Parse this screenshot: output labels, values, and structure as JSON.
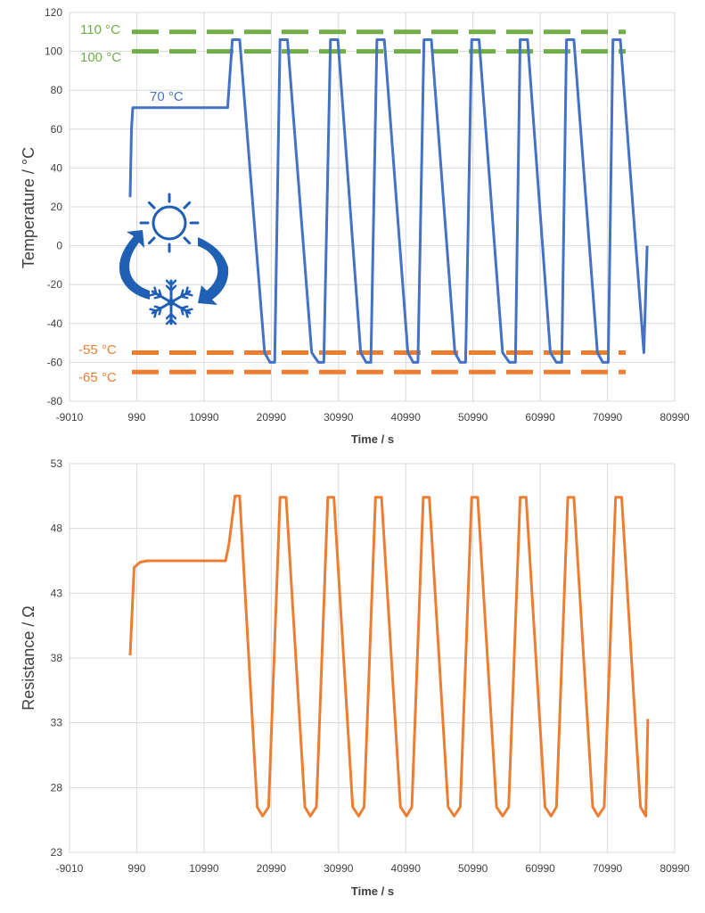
{
  "colors": {
    "temperature": "#4472c4",
    "resistance": "#ed7d31",
    "upper_limit": "#70ad47",
    "lower_limit": "#ed7d31",
    "icon": "#1f5fb4"
  },
  "icons": [
    "sun-icon",
    "snowflake-icon",
    "cycle-arrows-icon"
  ],
  "chart_data": [
    {
      "type": "line",
      "title": "",
      "xlabel": "Time / s",
      "ylabel": "Temperature / °C",
      "xlim": [
        -9010,
        80990
      ],
      "ylim": [
        -80,
        120
      ],
      "x_ticks": [
        "-9010",
        "990",
        "10990",
        "20990",
        "30990",
        "40990",
        "50990",
        "60990",
        "70990",
        "80990"
      ],
      "y_ticks": [
        "-80",
        "-60",
        "-40",
        "-20",
        "0",
        "20",
        "40",
        "60",
        "80",
        "100",
        "120"
      ],
      "grid": true,
      "series": [
        {
          "x": [
            0,
            200,
            400,
            2000,
            14500,
            15200,
            16300,
            20000,
            20800,
            21500,
            22300,
            23400,
            27000,
            28000,
            28800,
            29800,
            30900,
            34300,
            35100,
            35800,
            36700,
            37800,
            41300,
            42100,
            42800,
            43700,
            44800,
            48300,
            49100,
            49900,
            50800,
            51900,
            55400,
            56400,
            57300,
            58000,
            59100,
            62500,
            63400,
            64200,
            64900,
            66000,
            69500,
            70300,
            71100,
            71800,
            72900,
            76400,
            76900
          ],
          "values": [
            25,
            60,
            71,
            71,
            71,
            106,
            106,
            -55,
            -60,
            -60,
            106,
            106,
            -55,
            -60,
            -60,
            106,
            106,
            -55,
            -60,
            -60,
            106,
            106,
            -55,
            -60,
            -60,
            106,
            106,
            -55,
            -60,
            -60,
            106,
            106,
            -55,
            -60,
            -60,
            106,
            106,
            -55,
            -60,
            -60,
            106,
            106,
            -55,
            -60,
            -60,
            106,
            106,
            -55,
            0
          ]
        }
      ],
      "annotations": [
        {
          "text": "110 °C",
          "value": 110
        },
        {
          "text": "100 °C",
          "value": 100
        },
        {
          "text": "70 °C",
          "value": 70
        },
        {
          "text": "-55 °C",
          "value": -55
        },
        {
          "text": "-65 °C",
          "value": -65
        }
      ],
      "reference_lines": [
        110,
        100,
        -55,
        -65
      ]
    },
    {
      "type": "line",
      "title": "",
      "xlabel": "Time / s",
      "ylabel": "Resistance / Ω",
      "xlim": [
        -9010,
        80990
      ],
      "ylim": [
        23,
        53
      ],
      "x_ticks": [
        "-9010",
        "990",
        "10990",
        "20990",
        "30990",
        "40990",
        "50990",
        "60990",
        "70990",
        "80990"
      ],
      "y_ticks": [
        "23",
        "28",
        "33",
        "38",
        "43",
        "48",
        "53"
      ],
      "grid": true,
      "series": [
        {
          "x": [
            0,
            600,
            1500,
            2500,
            14200,
            14700,
            15600,
            16300,
            18900,
            19700,
            20600,
            22300,
            23200,
            26000,
            26800,
            27700,
            29400,
            30300,
            33100,
            34000,
            34800,
            36500,
            37400,
            40200,
            41100,
            41900,
            43600,
            44500,
            47300,
            48200,
            49100,
            50800,
            51700,
            54500,
            55400,
            56300,
            58000,
            58900,
            61700,
            62600,
            63400,
            65100,
            66000,
            68800,
            69600,
            70500,
            72200,
            73100,
            75900,
            76700,
            77000
          ],
          "values": [
            38.2,
            45,
            45.4,
            45.5,
            45.5,
            46.8,
            50.5,
            50.5,
            26.5,
            25.8,
            26.5,
            50.4,
            50.4,
            26.5,
            25.8,
            26.5,
            50.4,
            50.4,
            26.5,
            25.8,
            26.5,
            50.4,
            50.4,
            26.5,
            25.8,
            26.5,
            50.4,
            50.4,
            26.5,
            25.8,
            26.5,
            50.4,
            50.4,
            26.5,
            25.8,
            26.5,
            50.4,
            50.4,
            26.5,
            25.8,
            26.5,
            50.4,
            50.4,
            26.5,
            25.8,
            26.5,
            50.4,
            50.4,
            26.5,
            25.8,
            33.3
          ]
        }
      ]
    }
  ]
}
